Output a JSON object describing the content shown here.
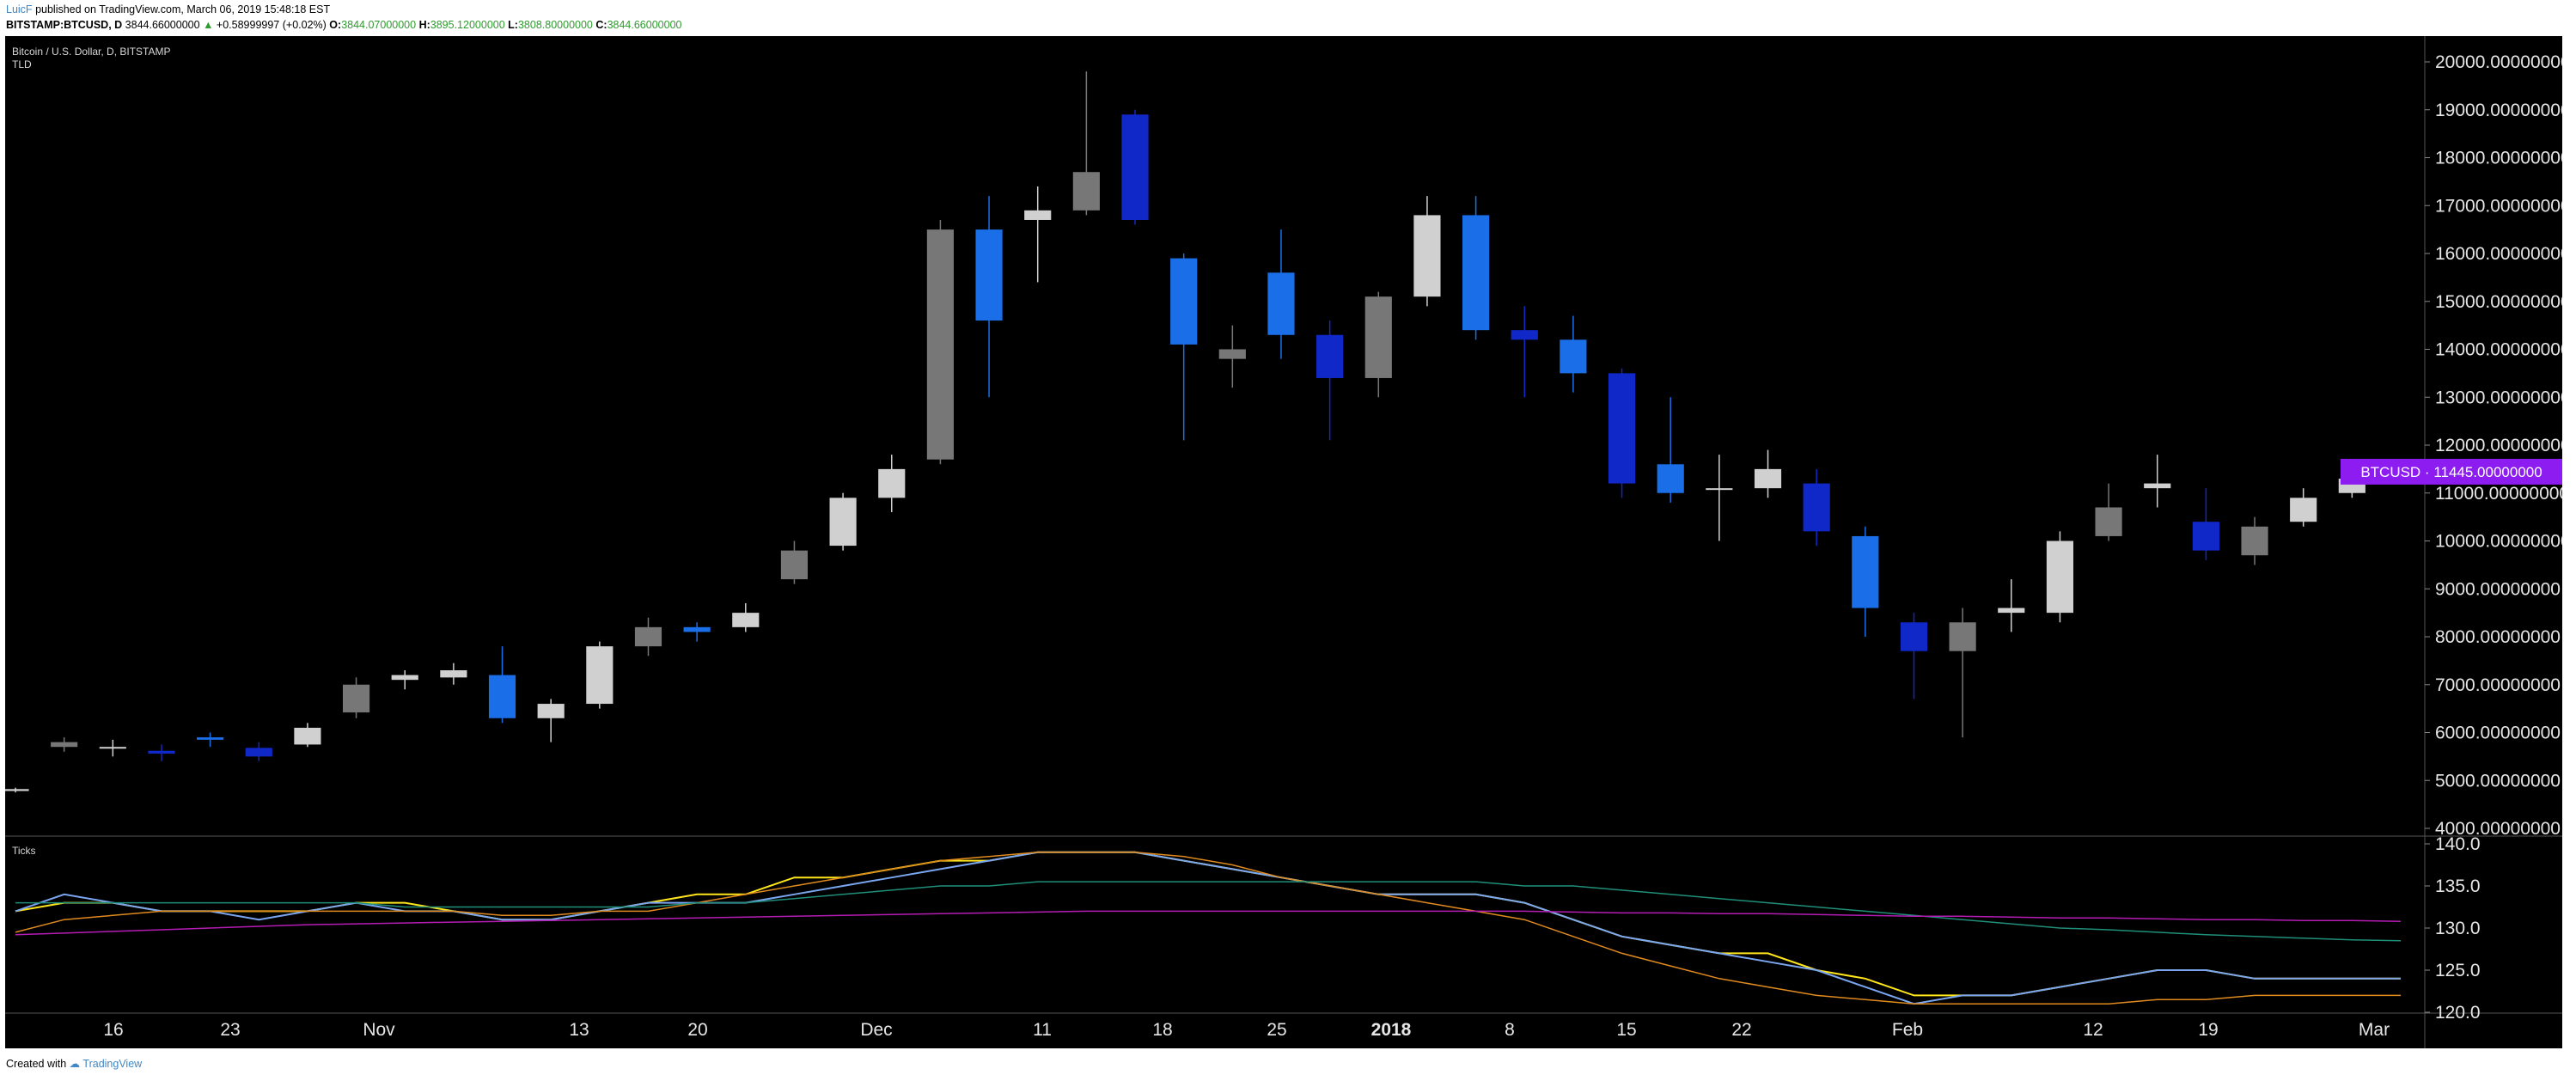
{
  "header": {
    "author": "LuicF",
    "published_text": "published on TradingView.com, March 06, 2019 15:48:18 EST",
    "symbol_line": {
      "symbol": "BITSTAMP:BTCUSD, D",
      "last": "3844.66000000",
      "change_arrow": "▲",
      "change": "+0.58999997 (+0.02%)",
      "o_label": "O:",
      "o_value": "3844.07000000",
      "h_label": "H:",
      "h_value": "3895.12000000",
      "l_label": "L:",
      "l_value": "3808.80000000",
      "c_label": "C:",
      "c_value": "3844.66000000"
    }
  },
  "chart": {
    "pane_title": "Bitcoin / U.S. Dollar, D, BITSTAMP",
    "indicator_label": "TLD",
    "ticks_label": "Ticks",
    "price_tag": "BTCUSD · 11445.00000000",
    "price_tag_value": 11445,
    "price_tag_color": "#8c1cf0",
    "price_axis_labels": [
      "20000.00000000",
      "19000.00000000",
      "18000.00000000",
      "17000.00000000",
      "16000.00000000",
      "15000.00000000",
      "14000.00000000",
      "13000.00000000",
      "12000.00000000",
      "11000.00000000",
      "10000.00000000",
      "9000.00000000",
      "8000.00000000",
      "7000.00000000",
      "6000.00000000",
      "5000.00000000",
      "4000.00000000"
    ],
    "ticks_axis_labels": [
      "140.0",
      "135.0",
      "130.0",
      "125.0",
      "120.0"
    ],
    "time_axis_labels": [
      "16",
      "23",
      "Nov",
      "13",
      "20",
      "Dec",
      "11",
      "18",
      "25",
      "2018",
      "8",
      "15",
      "22",
      "Feb",
      "12",
      "19",
      "Mar"
    ],
    "time_axis_bold": "2018",
    "colors": {
      "background": "#000000",
      "up_light": "#d0d0d0",
      "up_dark": "#777777",
      "down_bright": "#1a6fe8",
      "down_deep": "#1128c8",
      "line_yellow": "#ffe61a",
      "line_blue": "#7aa6f0",
      "line_orange": "#e08a1e",
      "line_teal": "#1f8f7a",
      "line_magenta": "#b41cb4"
    }
  },
  "chart_data": {
    "type": "candlestick",
    "title": "Bitcoin / U.S. Dollar, D, BITSTAMP",
    "x": [
      "2017-10-10",
      "2017-10-13",
      "2017-10-16",
      "2017-10-19",
      "2017-10-22",
      "2017-10-25",
      "2017-10-28",
      "2017-10-31",
      "2017-11-03",
      "2017-11-06",
      "2017-11-09",
      "2017-11-12",
      "2017-11-15",
      "2017-11-18",
      "2017-11-21",
      "2017-11-24",
      "2017-11-27",
      "2017-11-30",
      "2017-12-03",
      "2017-12-06",
      "2017-12-09",
      "2017-12-12",
      "2017-12-15",
      "2017-12-18",
      "2017-12-21",
      "2017-12-24",
      "2017-12-27",
      "2017-12-30",
      "2018-01-02",
      "2018-01-05",
      "2018-01-08",
      "2018-01-11",
      "2018-01-14",
      "2018-01-17",
      "2018-01-20",
      "2018-01-23",
      "2018-01-26",
      "2018-01-29",
      "2018-02-01",
      "2018-02-04",
      "2018-02-07",
      "2018-02-10",
      "2018-02-13",
      "2018-02-16",
      "2018-02-19",
      "2018-02-22",
      "2018-02-25",
      "2018-02-28",
      "2018-03-03",
      "2018-03-06"
    ],
    "open": [
      4780,
      5700,
      5680,
      5620,
      5900,
      5680,
      5750,
      6420,
      7100,
      7150,
      7200,
      6300,
      6600,
      7800,
      8200,
      8200,
      9200,
      9900,
      10900,
      11700,
      16500,
      16700,
      16900,
      18900,
      15900,
      13800,
      15600,
      14300,
      13400,
      15100,
      16800,
      14400,
      14200,
      13500,
      11600,
      11100,
      11100,
      11200,
      10100,
      8300,
      7700,
      8500,
      8500,
      10100,
      11100,
      10400,
      9700,
      10400,
      11000,
      11400
    ],
    "close": [
      4820,
      5800,
      5700,
      5560,
      5850,
      5500,
      6100,
      7000,
      7200,
      7300,
      6300,
      6600,
      7800,
      8200,
      8100,
      8500,
      9800,
      10900,
      11500,
      16500,
      14600,
      16900,
      17700,
      16700,
      14100,
      14000,
      14300,
      13400,
      15100,
      16800,
      14400,
      14200,
      13500,
      11200,
      11000,
      11100,
      11500,
      10200,
      8600,
      7700,
      8300,
      8600,
      10000,
      10700,
      11200,
      9800,
      10300,
      10900,
      11300,
      11445
    ],
    "high": [
      4850,
      5900,
      5850,
      5750,
      6000,
      5800,
      6200,
      7150,
      7300,
      7450,
      7800,
      6700,
      7900,
      8400,
      8300,
      8700,
      10000,
      11000,
      11800,
      16700,
      17200,
      17400,
      19800,
      19000,
      16000,
      14500,
      16500,
      14600,
      15200,
      17200,
      17200,
      14900,
      14700,
      13600,
      13000,
      11800,
      11900,
      11500,
      10300,
      8500,
      8600,
      9200,
      10200,
      11200,
      11800,
      11100,
      10500,
      11100,
      11500,
      11600
    ],
    "low": [
      4750,
      5600,
      5500,
      5400,
      5700,
      5400,
      5700,
      6300,
      6900,
      7000,
      6200,
      5800,
      6500,
      7600,
      7900,
      8100,
      9100,
      9800,
      10600,
      11600,
      13000,
      15400,
      16800,
      16600,
      12100,
      13200,
      13800,
      12100,
      13000,
      14900,
      14200,
      13000,
      13100,
      10900,
      10800,
      10000,
      10900,
      9900,
      8000,
      6700,
      5900,
      8100,
      8300,
      10000,
      10700,
      9600,
      9500,
      10300,
      10900,
      11300
    ],
    "ylim": [
      4000,
      20500
    ],
    "ticks_series": [
      {
        "color": "yellow",
        "values": [
          132,
          133,
          133,
          132,
          132,
          132,
          132,
          133,
          133,
          132,
          131,
          131,
          132,
          133,
          134,
          134,
          136,
          136,
          137,
          138,
          138,
          139,
          139,
          139,
          138,
          137,
          136,
          135,
          134,
          134,
          134,
          133,
          131,
          129,
          128,
          127,
          127,
          125,
          124,
          122,
          122,
          122,
          123,
          124,
          125,
          125,
          124,
          124,
          124,
          124
        ]
      },
      {
        "color": "blue",
        "values": [
          132,
          134,
          133,
          132,
          132,
          131,
          132,
          133,
          132,
          132,
          131,
          131,
          132,
          133,
          133,
          133,
          134,
          135,
          136,
          137,
          138,
          139,
          139,
          139,
          138,
          137,
          136,
          135,
          134,
          134,
          134,
          133,
          131,
          129,
          128,
          127,
          126,
          125,
          123,
          121,
          122,
          122,
          123,
          124,
          125,
          125,
          124,
          124,
          124,
          124
        ]
      },
      {
        "color": "orange",
        "values": [
          129.5,
          131,
          131.5,
          132,
          132,
          132,
          132,
          132,
          132,
          132,
          131.5,
          131.5,
          132,
          132,
          133,
          134,
          135,
          136,
          137,
          138,
          138.5,
          139,
          139,
          139,
          138.5,
          137.5,
          136,
          135,
          134,
          133,
          132,
          131,
          129,
          127,
          125.5,
          124,
          123,
          122,
          121.5,
          121,
          121,
          121,
          121,
          121,
          121.5,
          121.5,
          122,
          122,
          122,
          122
        ]
      },
      {
        "color": "teal",
        "values": [
          133,
          133,
          133,
          133,
          133,
          133,
          133,
          133,
          132.5,
          132.5,
          132.5,
          132.5,
          132.5,
          132.5,
          133,
          133,
          133.5,
          134,
          134.5,
          135,
          135,
          135.5,
          135.5,
          135.5,
          135.5,
          135.5,
          135.5,
          135.5,
          135.5,
          135.5,
          135.5,
          135,
          135,
          134.5,
          134,
          133.5,
          133,
          132.5,
          132,
          131.5,
          131,
          130.5,
          130,
          129.8,
          129.5,
          129.2,
          129,
          128.8,
          128.6,
          128.5
        ]
      },
      {
        "color": "magenta",
        "values": [
          129.2,
          129.4,
          129.6,
          129.8,
          130,
          130.2,
          130.4,
          130.5,
          130.6,
          130.7,
          130.8,
          130.9,
          131,
          131.1,
          131.2,
          131.3,
          131.4,
          131.5,
          131.6,
          131.7,
          131.8,
          131.9,
          132,
          132,
          132,
          132,
          132,
          132,
          132,
          132,
          132,
          132,
          131.9,
          131.8,
          131.8,
          131.7,
          131.7,
          131.6,
          131.5,
          131.4,
          131.4,
          131.3,
          131.2,
          131.2,
          131.1,
          131,
          131,
          130.9,
          130.9,
          130.8
        ]
      }
    ],
    "ticks_ylim": [
      120,
      140
    ]
  }
}
